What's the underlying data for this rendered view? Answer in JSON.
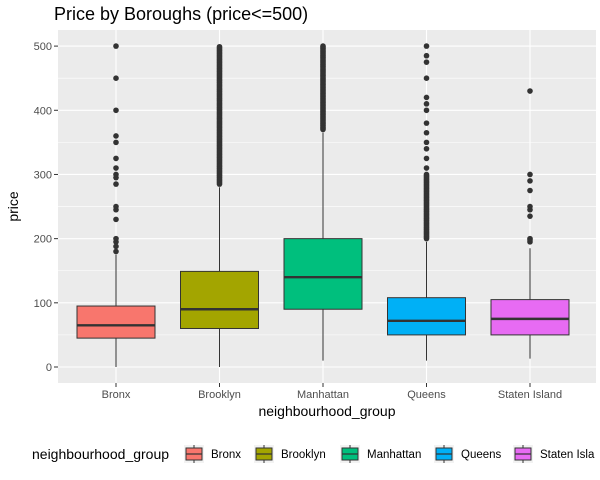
{
  "chart_data": {
    "type": "boxplot",
    "title": "Price by Boroughs (price<=500)",
    "xlabel": "neighbourhood_group",
    "ylabel": "price",
    "ylim": [
      0,
      500
    ],
    "yticks": [
      0,
      100,
      200,
      300,
      400,
      500
    ],
    "grid": true,
    "legend": {
      "title": "neighbourhood_group",
      "position": "bottom"
    },
    "categories": [
      "Bronx",
      "Brooklyn",
      "Manhattan",
      "Queens",
      "Staten Island"
    ],
    "legend_labels": [
      "Bronx",
      "Brooklyn",
      "Manhattan",
      "Queens",
      "Staten Isla"
    ],
    "series": [
      {
        "name": "Bronx",
        "color": "#F8766D",
        "min": 0,
        "q1": 45,
        "median": 65,
        "q3": 95,
        "max": 175,
        "outliers": [
          180,
          188,
          195,
          200,
          230,
          245,
          250,
          285,
          295,
          300,
          310,
          325,
          350,
          360,
          400,
          450,
          500
        ]
      },
      {
        "name": "Brooklyn",
        "color": "#A3A500",
        "min": 0,
        "q1": 60,
        "median": 90,
        "q3": 149,
        "max": 280,
        "outliers_range": [
          285,
          500
        ]
      },
      {
        "name": "Manhattan",
        "color": "#00BF7D",
        "min": 10,
        "q1": 90,
        "median": 140,
        "q3": 200,
        "max": 365,
        "outliers_range": [
          370,
          500
        ]
      },
      {
        "name": "Queens",
        "color": "#00B0F6",
        "min": 10,
        "q1": 50,
        "median": 72,
        "q3": 108,
        "max": 195,
        "outliers_range": [
          200,
          300
        ],
        "outliers": [
          310,
          325,
          340,
          350,
          365,
          380,
          400,
          410,
          420,
          450,
          475,
          485,
          500
        ]
      },
      {
        "name": "Staten Island",
        "color": "#E76BF3",
        "min": 13,
        "q1": 50,
        "median": 75,
        "q3": 105,
        "max": 185,
        "outliers": [
          195,
          198,
          200,
          235,
          245,
          250,
          275,
          290,
          300,
          430
        ]
      }
    ]
  }
}
